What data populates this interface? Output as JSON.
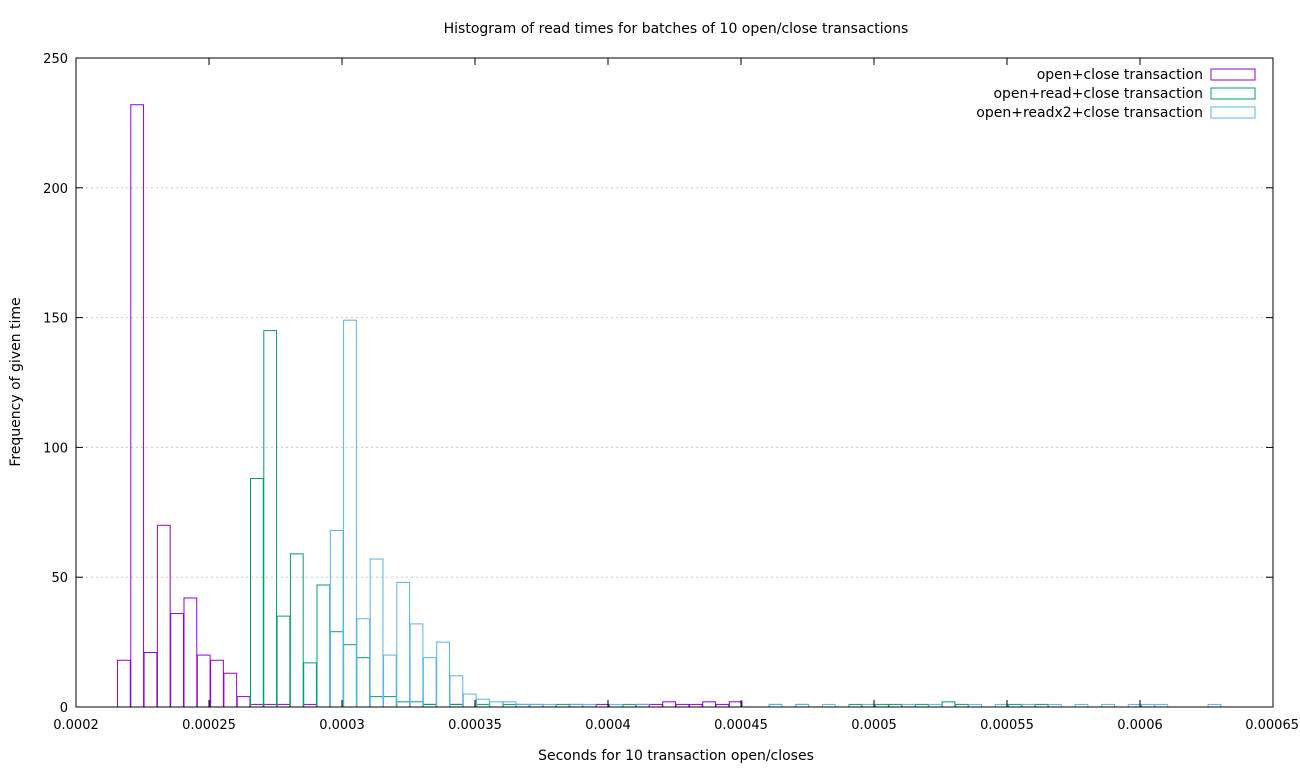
{
  "chart_data": {
    "type": "bar",
    "title": "Histogram of read times for batches of 10 open/close transactions",
    "xlabel": "Seconds for 10 transaction open/closes",
    "ylabel": "Frequency of given time",
    "xlim": [
      0.0002,
      0.00065
    ],
    "ylim": [
      0,
      250
    ],
    "x_ticks": [
      "0.0002",
      "0.00025",
      "0.0003",
      "0.00035",
      "0.0004",
      "0.00045",
      "0.0005",
      "0.00055",
      "0.0006",
      "0.00065"
    ],
    "y_ticks": [
      "0",
      "50",
      "100",
      "150",
      "200",
      "250"
    ],
    "grid": true,
    "legend_position": "top-right",
    "bin_width": 4.8e-06,
    "series": [
      {
        "name": "open+close transaction",
        "color": "#9400d3",
        "points": [
          [
            0.000218,
            18
          ],
          [
            0.000223,
            232
          ],
          [
            0.000228,
            21
          ],
          [
            0.000233,
            70
          ],
          [
            0.000238,
            36
          ],
          [
            0.000243,
            42
          ],
          [
            0.000248,
            20
          ],
          [
            0.000253,
            18
          ],
          [
            0.000258,
            13
          ],
          [
            0.000263,
            4
          ],
          [
            0.000268,
            1
          ],
          [
            0.000273,
            1
          ],
          [
            0.000278,
            1
          ],
          [
            0.000288,
            1
          ],
          [
            0.000333,
            1
          ],
          [
            0.000343,
            1
          ],
          [
            0.000368,
            1
          ],
          [
            0.000388,
            1
          ],
          [
            0.000398,
            1
          ],
          [
            0.000413,
            1
          ],
          [
            0.000418,
            1
          ],
          [
            0.000423,
            2
          ],
          [
            0.000428,
            1
          ],
          [
            0.000433,
            1
          ],
          [
            0.000438,
            2
          ],
          [
            0.000443,
            1
          ],
          [
            0.000448,
            2
          ]
        ]
      },
      {
        "name": "open+read+close transaction",
        "color": "#009e73",
        "points": [
          [
            0.000268,
            88
          ],
          [
            0.000273,
            145
          ],
          [
            0.000278,
            35
          ],
          [
            0.000283,
            59
          ],
          [
            0.000288,
            17
          ],
          [
            0.000293,
            47
          ],
          [
            0.000298,
            29
          ],
          [
            0.000303,
            24
          ],
          [
            0.000308,
            19
          ],
          [
            0.000313,
            4
          ],
          [
            0.000318,
            4
          ],
          [
            0.000323,
            2
          ],
          [
            0.000328,
            2
          ],
          [
            0.000333,
            1
          ],
          [
            0.000343,
            1
          ],
          [
            0.000353,
            1
          ],
          [
            0.000363,
            1
          ],
          [
            0.000373,
            1
          ],
          [
            0.000383,
            1
          ],
          [
            0.000408,
            1
          ],
          [
            0.000463,
            1
          ],
          [
            0.000473,
            1
          ],
          [
            0.000493,
            1
          ],
          [
            0.000503,
            1
          ],
          [
            0.000508,
            1
          ],
          [
            0.000518,
            1
          ],
          [
            0.000528,
            2
          ],
          [
            0.000533,
            1
          ],
          [
            0.000553,
            1
          ],
          [
            0.000563,
            1
          ]
        ]
      },
      {
        "name": "open+readx2+close transaction",
        "color": "#56b4e9",
        "points": [
          [
            0.000298,
            68
          ],
          [
            0.000303,
            149
          ],
          [
            0.000308,
            34
          ],
          [
            0.000313,
            57
          ],
          [
            0.000318,
            20
          ],
          [
            0.000323,
            48
          ],
          [
            0.000328,
            32
          ],
          [
            0.000333,
            19
          ],
          [
            0.000338,
            25
          ],
          [
            0.000343,
            12
          ],
          [
            0.000348,
            5
          ],
          [
            0.000353,
            3
          ],
          [
            0.000358,
            2
          ],
          [
            0.000363,
            2
          ],
          [
            0.000368,
            1
          ],
          [
            0.000373,
            1
          ],
          [
            0.000378,
            1
          ],
          [
            0.000388,
            1
          ],
          [
            0.000393,
            1
          ],
          [
            0.000403,
            1
          ],
          [
            0.000413,
            1
          ],
          [
            0.000463,
            1
          ],
          [
            0.000473,
            1
          ],
          [
            0.000483,
            1
          ],
          [
            0.000498,
            1
          ],
          [
            0.000513,
            1
          ],
          [
            0.000523,
            1
          ],
          [
            0.000538,
            1
          ],
          [
            0.000548,
            1
          ],
          [
            0.000558,
            1
          ],
          [
            0.000568,
            1
          ],
          [
            0.000578,
            1
          ],
          [
            0.000588,
            1
          ],
          [
            0.000598,
            1
          ],
          [
            0.000603,
            1
          ],
          [
            0.000608,
            1
          ],
          [
            0.000628,
            1
          ]
        ]
      }
    ]
  }
}
